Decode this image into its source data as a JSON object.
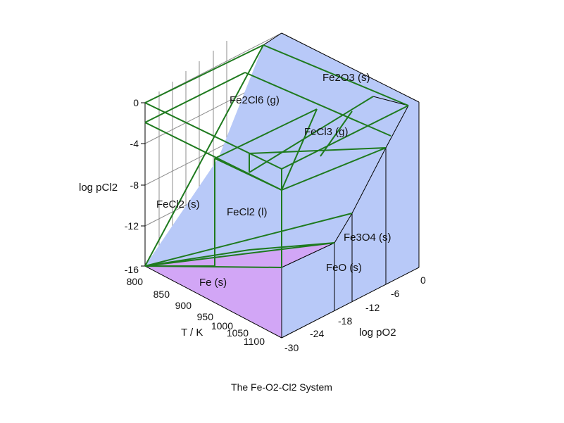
{
  "caption": "The Fe-O2-Cl2 System",
  "colors": {
    "region_blue": "#b8c9f8",
    "region_purple": "#d2a6f6",
    "boundary_green": "#1e7a1e",
    "edge_black": "#000000",
    "grid_gray": "#8c8c8c"
  },
  "axes": {
    "temperature": {
      "label": "T / K",
      "ticks": [
        "800",
        "850",
        "900",
        "950",
        "1000",
        "1050",
        "1100"
      ]
    },
    "log_pO2": {
      "label": "log pO2",
      "ticks": [
        "-30",
        "-24",
        "-18",
        "-12",
        "-6",
        "0"
      ]
    },
    "log_pCl2": {
      "label": "log pCl2",
      "ticks": [
        "0",
        "-4",
        "-8",
        "-12",
        "-16"
      ]
    }
  },
  "phases": {
    "fe2o3": "Fe2O3 (s)",
    "fe2cl6": "Fe2Cl6 (g)",
    "fecl3": "FeCl3 (g)",
    "fecl2_s": "FeCl2 (s)",
    "fecl2_l": "FeCl2 (l)",
    "fe3o4": "Fe3O4 (s)",
    "feo": "FeO (s)",
    "fe": "Fe (s)"
  }
}
